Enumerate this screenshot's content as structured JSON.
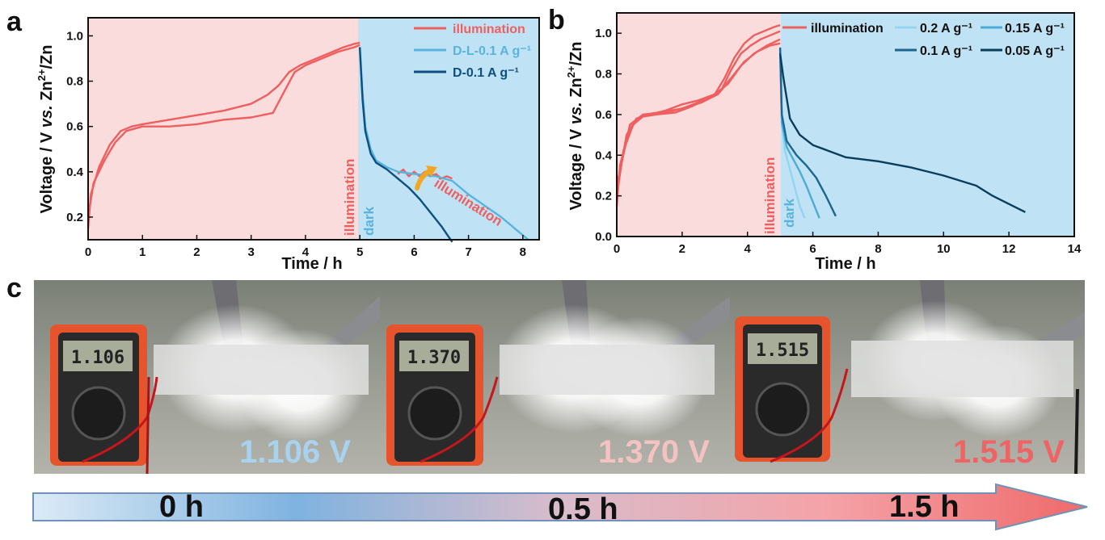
{
  "panels": {
    "a": "a",
    "b": "b",
    "c": "c"
  },
  "colors": {
    "illum_bg": "#fadcdc",
    "dark_bg": "#bfe3f5",
    "illumination": "#ef5f5f",
    "dl01": "#5ab3dd",
    "d01": "#0d4f7e",
    "b02": "#94d4f0",
    "b015": "#4daad9",
    "b01": "#1d6591",
    "b005": "#0a3d5c",
    "arrow_orange": "#f5a623"
  },
  "chart_data": [
    {
      "id": "a",
      "type": "line",
      "xlabel": "Time / h",
      "ylabel": "Voltage / V vs. Zn2+/Zn",
      "ylabel_parts": {
        "pre": "Voltage / V ",
        "vs": "vs.",
        "zn": " Zn",
        "sup": "2+",
        "post": "/Zn"
      },
      "xlim": [
        0,
        8.3
      ],
      "ylim": [
        0.1,
        1.08
      ],
      "xticks": [
        "0",
        "1",
        "2",
        "3",
        "4",
        "5",
        "6",
        "7",
        "8"
      ],
      "yticks": [
        "0.2",
        "0.4",
        "0.6",
        "0.8",
        "1.0"
      ],
      "regions": [
        {
          "from": 0,
          "to": 5,
          "label": "illumination"
        },
        {
          "from": 5,
          "to": 8.3,
          "label": "dark"
        }
      ],
      "annotation": "illumination",
      "legend": [
        {
          "name": "illumination",
          "key": "illumination"
        },
        {
          "name": "D-L-0.1 A g⁻¹",
          "key": "dl01"
        },
        {
          "name": "D-0.1 A g⁻¹",
          "key": "d01"
        }
      ],
      "series": [
        {
          "name": "illumination-charge-1",
          "key": "illumination",
          "x": [
            0,
            0.05,
            0.2,
            0.4,
            0.6,
            0.8,
            1.0,
            1.5,
            2.0,
            2.5,
            3.0,
            3.3,
            3.5,
            3.7,
            3.9,
            4.1,
            4.3,
            4.5,
            4.7,
            4.9,
            5.0
          ],
          "y": [
            0.15,
            0.3,
            0.42,
            0.52,
            0.58,
            0.6,
            0.61,
            0.63,
            0.65,
            0.67,
            0.7,
            0.74,
            0.78,
            0.84,
            0.87,
            0.89,
            0.91,
            0.93,
            0.95,
            0.965,
            0.97
          ]
        },
        {
          "name": "illumination-charge-2",
          "key": "illumination",
          "x": [
            0,
            0.1,
            0.3,
            0.5,
            0.7,
            1.0,
            1.5,
            2.0,
            2.5,
            3.0,
            3.4,
            3.6,
            3.8,
            4.0,
            4.3,
            4.6,
            4.9,
            5.0
          ],
          "y": [
            0.2,
            0.35,
            0.45,
            0.53,
            0.58,
            0.6,
            0.6,
            0.61,
            0.63,
            0.64,
            0.66,
            0.75,
            0.84,
            0.87,
            0.9,
            0.93,
            0.95,
            0.96
          ]
        },
        {
          "name": "illumination-in-discharge",
          "key": "illumination",
          "x": [
            5.7,
            5.8,
            5.9,
            6.0,
            6.1,
            6.2,
            6.3,
            6.4,
            6.5,
            6.6,
            6.7
          ],
          "y": [
            0.39,
            0.41,
            0.38,
            0.4,
            0.38,
            0.4,
            0.38,
            0.39,
            0.37,
            0.38,
            0.37
          ]
        },
        {
          "name": "D-L-0.1",
          "key": "dl01",
          "x": [
            5.0,
            5.05,
            5.1,
            5.2,
            5.3,
            5.5,
            5.7,
            6.0,
            6.4,
            6.7,
            7.0,
            7.3,
            7.6,
            7.9,
            8.1
          ],
          "y": [
            0.95,
            0.75,
            0.6,
            0.5,
            0.45,
            0.42,
            0.4,
            0.39,
            0.38,
            0.36,
            0.3,
            0.25,
            0.2,
            0.14,
            0.1
          ]
        },
        {
          "name": "D-0.1",
          "key": "d01",
          "x": [
            5.0,
            5.05,
            5.1,
            5.2,
            5.3,
            5.5,
            5.7,
            5.9,
            6.1,
            6.3,
            6.5,
            6.7
          ],
          "y": [
            0.95,
            0.72,
            0.58,
            0.48,
            0.44,
            0.41,
            0.37,
            0.33,
            0.28,
            0.22,
            0.16,
            0.09
          ]
        }
      ]
    },
    {
      "id": "b",
      "type": "line",
      "xlabel": "Time / h",
      "ylabel": "Voltage / V vs. Zn2+/Zn",
      "ylabel_parts": {
        "pre": "Voltage / V ",
        "vs": "vs.",
        "zn": " Zn",
        "sup": "2+",
        "post": "/Zn"
      },
      "xlim": [
        0,
        14
      ],
      "ylim": [
        0,
        1.1
      ],
      "xticks": [
        "0",
        "2",
        "4",
        "6",
        "8",
        "10",
        "12",
        "14"
      ],
      "yticks": [
        "0.0",
        "0.2",
        "0.4",
        "0.6",
        "0.8",
        "1.0"
      ],
      "regions": [
        {
          "from": 0,
          "to": 5,
          "label": "illumination"
        },
        {
          "from": 5,
          "to": 14,
          "label": "dark"
        }
      ],
      "legend": [
        {
          "name": "illumination",
          "key": "illumination"
        },
        {
          "name": "0.2 A g⁻¹",
          "key": "b02"
        },
        {
          "name": "0.15 A g⁻¹",
          "key": "b015"
        },
        {
          "name": "0.1 A g⁻¹",
          "key": "b01"
        },
        {
          "name": "0.05 A g⁻¹",
          "key": "b005"
        }
      ],
      "series": [
        {
          "name": "illumination-1",
          "key": "illumination",
          "x": [
            0,
            0.1,
            0.3,
            0.6,
            1.0,
            1.5,
            2.0,
            2.5,
            3.0,
            3.3,
            3.6,
            3.9,
            4.2,
            4.5,
            4.8,
            5.0
          ],
          "y": [
            0.15,
            0.35,
            0.48,
            0.58,
            0.6,
            0.61,
            0.63,
            0.66,
            0.7,
            0.78,
            0.88,
            0.95,
            0.99,
            1.01,
            1.03,
            1.04
          ]
        },
        {
          "name": "illumination-2",
          "key": "illumination",
          "x": [
            0,
            0.2,
            0.5,
            0.8,
            1.2,
            1.8,
            2.3,
            2.8,
            3.2,
            3.5,
            3.8,
            4.1,
            4.4,
            4.7,
            5.0
          ],
          "y": [
            0.2,
            0.42,
            0.55,
            0.59,
            0.6,
            0.61,
            0.64,
            0.68,
            0.72,
            0.82,
            0.9,
            0.94,
            0.97,
            0.99,
            1.01
          ]
        },
        {
          "name": "illumination-3",
          "key": "illumination",
          "x": [
            0,
            0.3,
            0.6,
            1.0,
            1.5,
            2.0,
            2.5,
            3.0,
            3.4,
            3.8,
            4.2,
            4.6,
            5.0
          ],
          "y": [
            0.22,
            0.5,
            0.58,
            0.6,
            0.62,
            0.65,
            0.67,
            0.7,
            0.75,
            0.84,
            0.9,
            0.94,
            0.97
          ]
        },
        {
          "name": "illumination-4",
          "key": "illumination",
          "x": [
            0,
            0.4,
            0.8,
            1.3,
            2.0,
            2.6,
            3.1,
            3.5,
            3.9,
            4.3,
            4.7,
            5.0
          ],
          "y": [
            0.25,
            0.55,
            0.6,
            0.61,
            0.63,
            0.66,
            0.7,
            0.78,
            0.86,
            0.91,
            0.94,
            0.95
          ]
        },
        {
          "name": "0.2 A g-1",
          "key": "b02",
          "x": [
            5.0,
            5.05,
            5.15,
            5.3,
            5.45,
            5.6,
            5.75
          ],
          "y": [
            0.9,
            0.55,
            0.42,
            0.33,
            0.24,
            0.15,
            0.09
          ]
        },
        {
          "name": "0.15 A g-1",
          "key": "b015",
          "x": [
            5.0,
            5.05,
            5.2,
            5.4,
            5.6,
            5.8,
            6.0,
            6.2
          ],
          "y": [
            0.92,
            0.56,
            0.44,
            0.38,
            0.32,
            0.25,
            0.17,
            0.09
          ]
        },
        {
          "name": "0.1 A g-1",
          "key": "b01",
          "x": [
            5.0,
            5.05,
            5.2,
            5.5,
            5.8,
            6.1,
            6.4,
            6.7
          ],
          "y": [
            0.93,
            0.6,
            0.47,
            0.4,
            0.35,
            0.29,
            0.2,
            0.1
          ]
        },
        {
          "name": "0.05 A g-1",
          "key": "b005",
          "x": [
            5.0,
            5.1,
            5.3,
            5.6,
            6.0,
            6.5,
            7.0,
            7.5,
            8.0,
            9.0,
            10.0,
            11.0,
            11.5,
            12.0,
            12.5
          ],
          "y": [
            0.9,
            0.78,
            0.58,
            0.5,
            0.45,
            0.42,
            0.39,
            0.38,
            0.37,
            0.34,
            0.3,
            0.25,
            0.2,
            0.16,
            0.12
          ]
        }
      ]
    }
  ],
  "photos": [
    {
      "meter_reading": "1.106",
      "voltage_label": "1.106 V",
      "voltage_color": "#a8d2ee"
    },
    {
      "meter_reading": "1.370",
      "voltage_label": "1.370 V",
      "voltage_color": "#f3c2c2"
    },
    {
      "meter_reading": "1.515",
      "voltage_label": "1.515 V",
      "voltage_color": "#ee6464"
    }
  ],
  "time_arrow": {
    "labels": [
      "0 h",
      "0.5 h",
      "1.5 h"
    ]
  }
}
